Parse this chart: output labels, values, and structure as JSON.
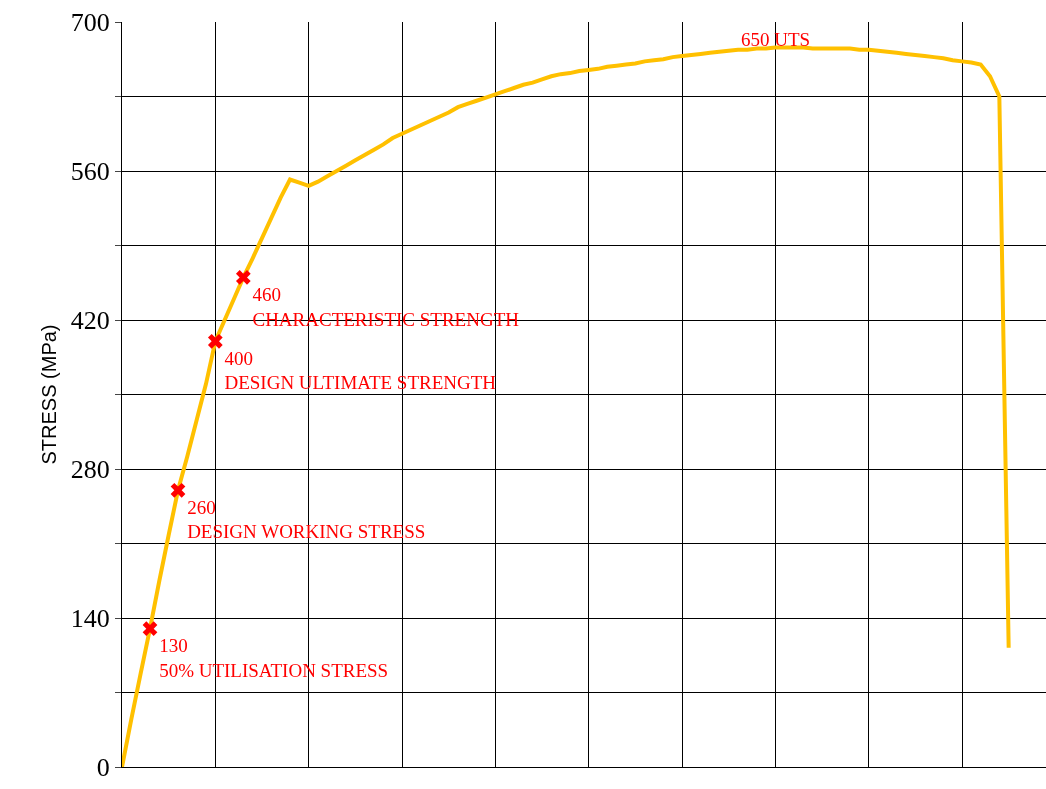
{
  "chart_data": {
    "type": "line",
    "ylabel": "STRESS (MPa)",
    "categories": [
      null,
      null,
      null,
      null,
      null,
      null,
      null,
      null,
      null,
      null,
      null,
      null,
      null,
      null,
      null,
      null,
      null,
      null,
      null,
      null,
      null,
      null,
      null,
      null,
      null,
      null,
      null,
      null,
      null,
      null,
      null,
      null,
      null,
      null,
      null,
      null,
      null,
      null,
      null,
      null,
      null,
      null,
      null,
      null,
      null,
      null,
      null,
      null,
      null,
      null,
      null,
      null,
      null,
      null,
      null,
      null,
      null,
      null,
      null,
      null,
      null,
      null,
      null,
      null,
      null,
      null,
      null,
      null,
      null,
      null,
      null,
      null,
      null,
      null,
      null,
      null,
      null,
      null,
      null,
      null,
      null,
      null,
      null,
      null,
      null,
      null,
      null,
      null,
      null,
      null,
      null,
      null,
      null,
      null,
      null,
      null
    ],
    "series": [
      {
        "color": "#ffc000",
        "marker": "none",
        "line_style": "solid",
        "values": [
          0,
          45,
          88,
          130,
          175,
          218,
          260,
          292,
          326,
          360,
          400,
          420,
          440,
          460,
          478,
          497,
          516,
          535,
          552,
          549,
          546,
          550,
          555,
          560,
          565,
          570,
          575,
          580,
          585,
          591,
          595,
          599,
          603,
          607,
          611,
          615,
          620,
          623,
          626,
          629,
          632,
          635,
          638,
          641,
          643,
          646,
          649,
          651,
          652,
          654,
          655,
          656,
          658,
          659,
          660,
          661,
          663,
          664,
          665,
          667,
          668,
          669,
          670,
          671,
          672,
          673,
          674,
          674,
          675,
          675,
          676,
          676,
          676,
          676,
          675,
          675,
          675,
          675,
          675,
          674,
          674,
          673,
          672,
          671,
          670,
          669,
          668,
          667,
          666,
          664,
          663,
          662,
          660,
          649,
          630,
          112
        ]
      },
      {
        "type": "scatter",
        "color": "#ff0000",
        "marker": "cross",
        "values": [
          null,
          null,
          null,
          130,
          null,
          null,
          260,
          null,
          null,
          null,
          400,
          null,
          null,
          460,
          null,
          null,
          null,
          null,
          null,
          null,
          null,
          null,
          null,
          null,
          null,
          null,
          null,
          null,
          null,
          null,
          null,
          null,
          null,
          null,
          null,
          null,
          null,
          null,
          null,
          null,
          null,
          null,
          null,
          null,
          null,
          null,
          null,
          null,
          null,
          null,
          null,
          null,
          null,
          null,
          null,
          null,
          null,
          null,
          null,
          null,
          null,
          null,
          null,
          null,
          null,
          null,
          null,
          null,
          null,
          null,
          null,
          null,
          null,
          null,
          null,
          null,
          null,
          null,
          null,
          null,
          null,
          null,
          null,
          null,
          null,
          null,
          null,
          null,
          null,
          null,
          null,
          null,
          null,
          null,
          null,
          null
        ],
        "value_labels": [
          null,
          null,
          null,
          "130\n50% UTILISATION STRESS",
          null,
          null,
          "260\nDESIGN WORKING STRESS",
          null,
          null,
          null,
          "400\nDESIGN ULTIMATE STRENGTH",
          null,
          null,
          "460\nCHARACTERISTIC STRENGTH",
          null,
          null,
          null,
          null,
          null,
          null,
          null,
          null,
          null,
          null,
          null,
          null,
          null,
          null,
          null,
          null,
          null,
          null,
          null,
          null,
          null,
          null,
          null,
          null,
          null,
          null,
          null,
          null,
          null,
          null,
          null,
          null,
          null,
          null,
          null,
          null,
          null,
          null,
          null,
          null,
          null,
          null,
          null,
          null,
          null,
          null,
          null,
          null,
          null,
          null,
          null,
          null,
          null,
          null,
          null,
          null,
          null,
          null,
          null,
          null,
          null,
          null,
          null,
          null,
          null,
          null,
          null,
          null,
          null,
          null,
          null,
          null,
          null,
          null,
          null,
          null,
          null,
          null,
          null,
          null,
          null,
          null
        ]
      }
    ],
    "annotations": [
      "650 UTS"
    ],
    "ylim": [
      0,
      700
    ],
    "yticks": [
      0,
      {
        "value": 70,
        "label": null
      },
      140,
      {
        "value": 210,
        "label": null
      },
      280,
      {
        "value": 350,
        "label": null
      },
      420,
      {
        "value": 490,
        "label": null
      },
      560,
      {
        "value": 630,
        "label": null
      },
      700
    ],
    "grid": true,
    "tick_labels": "y"
  }
}
